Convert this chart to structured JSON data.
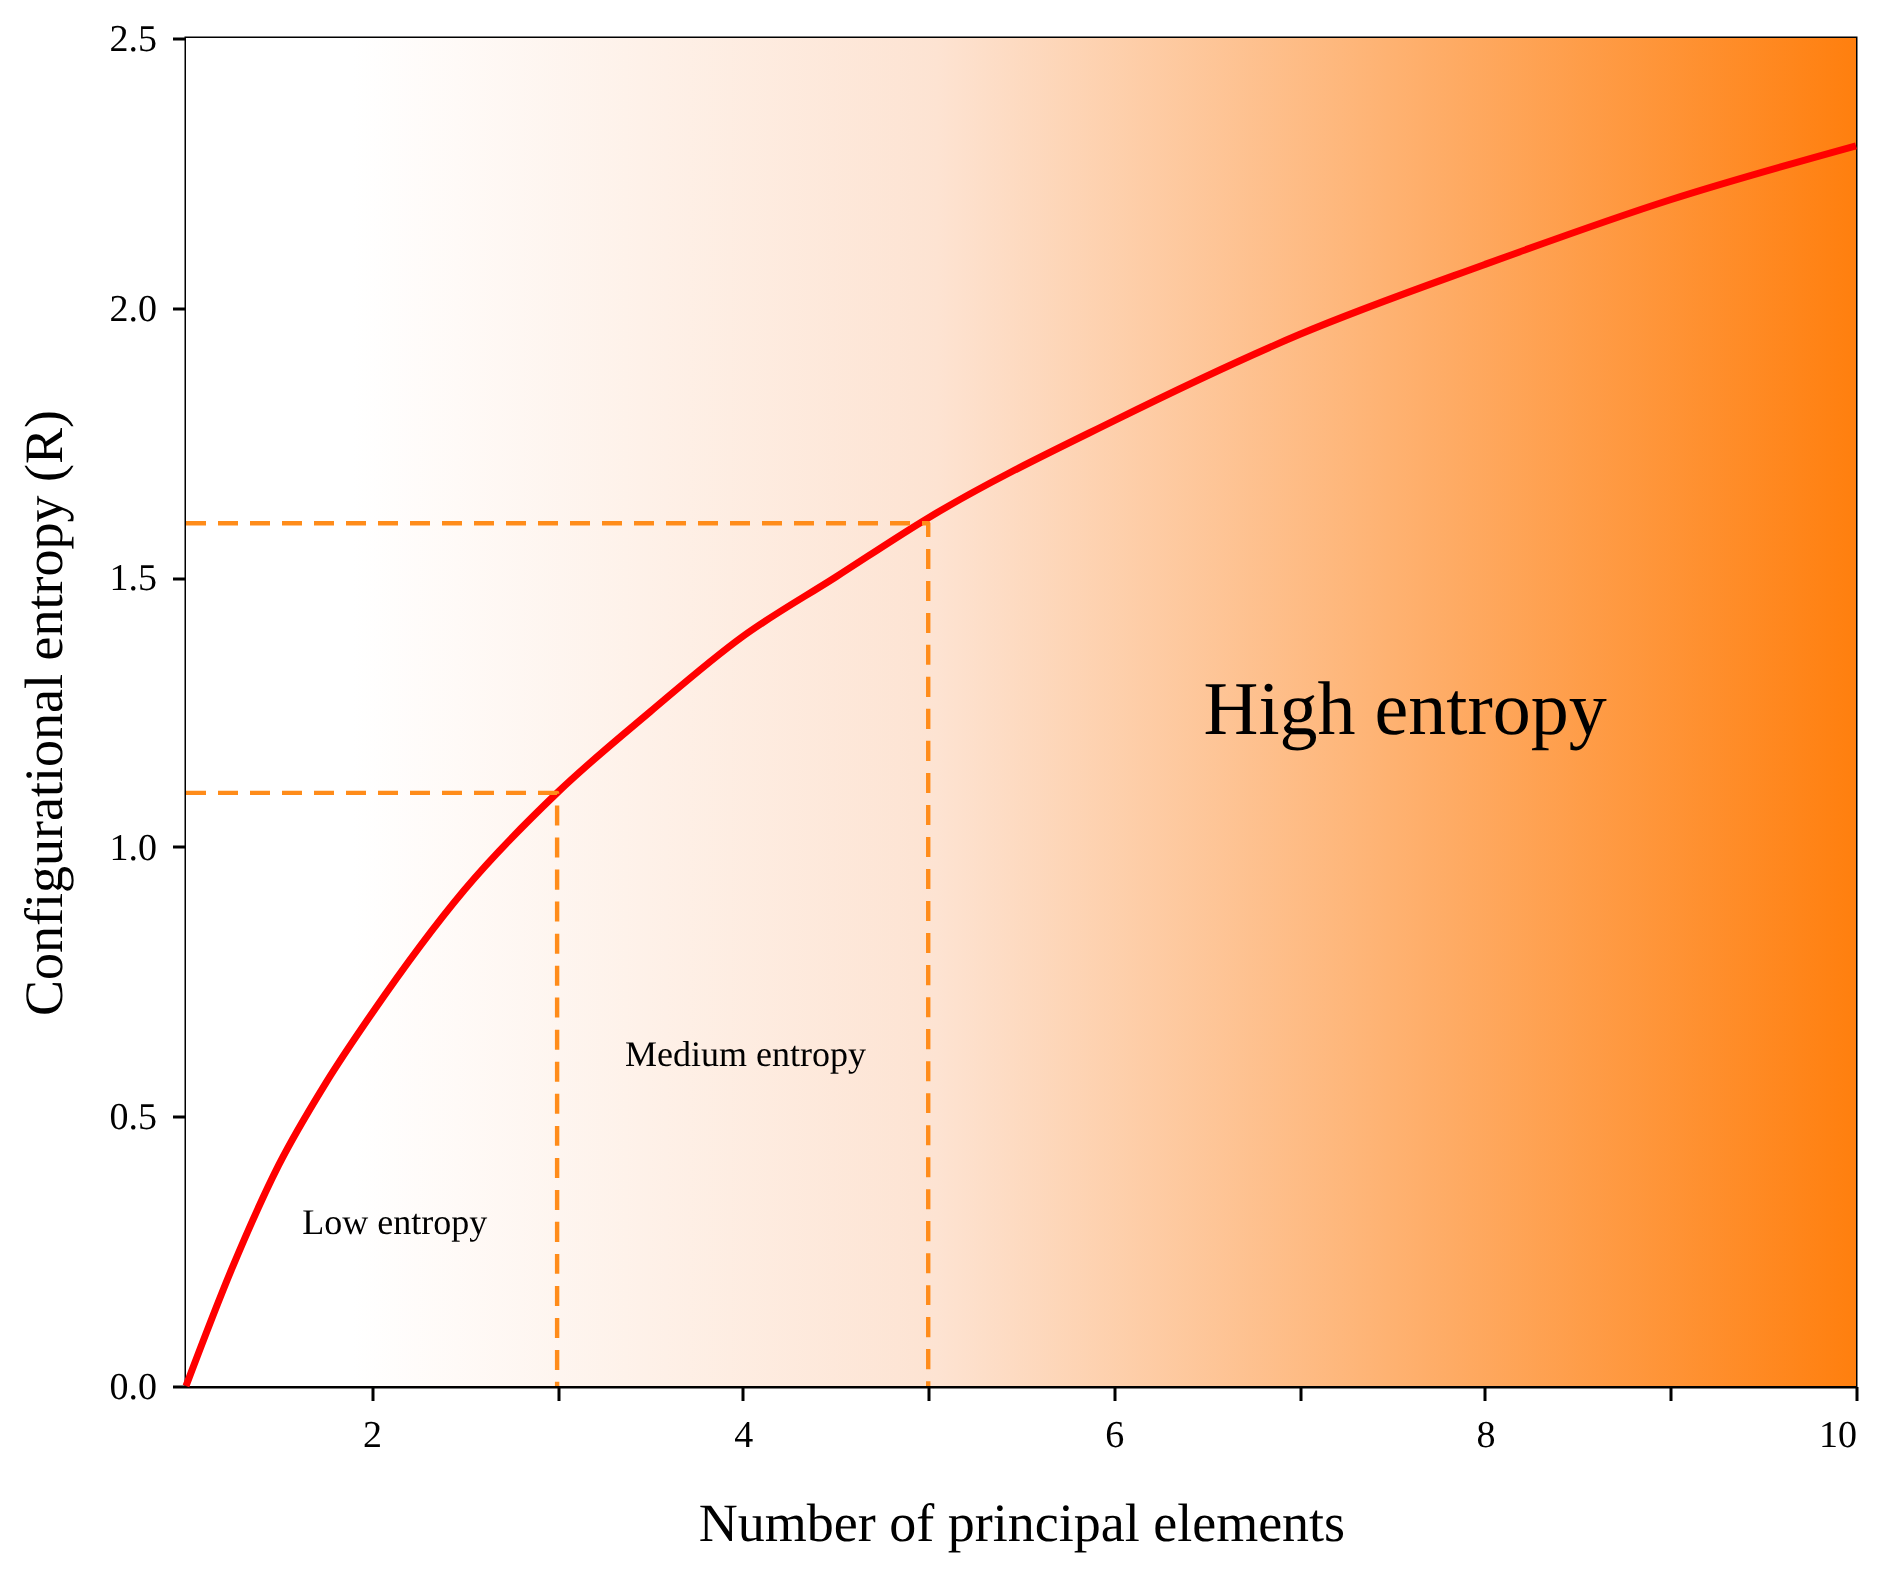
{
  "chart_data": {
    "type": "line",
    "xlabel": "Number of principal elements",
    "ylabel": "Configurational entropy (R)",
    "xlim": [
      1,
      10
    ],
    "ylim": [
      0,
      2.5
    ],
    "xticks": [
      2,
      {
        "value": 3,
        "label": null
      },
      4,
      {
        "value": 5,
        "label": null
      },
      6,
      {
        "value": 7,
        "label": null
      },
      8,
      {
        "value": 9,
        "label": null
      },
      10
    ],
    "yticks": [
      {
        "value": 0,
        "label": "0.0"
      },
      0.5,
      {
        "value": 1,
        "label": "1.0"
      },
      1.5,
      {
        "value": 2,
        "label": "2.0"
      },
      2.5
    ],
    "grid": false,
    "bands": [
      {
        "axis": "x",
        "from": 1,
        "to": 10,
        "color": "#ff7f0e"
      }
    ],
    "series": [
      {
        "x": [
          1,
          1.25,
          1.5,
          1.75,
          2,
          2.5,
          3,
          3.5,
          4,
          4.5,
          5,
          6,
          7,
          8,
          9,
          10
        ],
        "values": [
          0,
          0.22,
          0.41,
          0.56,
          0.69,
          0.92,
          1.1,
          1.25,
          1.39,
          1.5,
          1.61,
          1.79,
          1.95,
          2.08,
          2.2,
          2.3
        ],
        "color": "#ff0000",
        "line_style": "solid"
      },
      {
        "type": "line",
        "x": [
          1,
          3,
          3
        ],
        "values": [
          1.1,
          1.1,
          0
        ],
        "color": "#ff8c1a",
        "line_style": "dashed"
      },
      {
        "type": "line",
        "x": [
          1,
          5,
          5
        ],
        "values": [
          1.6,
          1.6,
          0
        ],
        "color": "#ff8c1a",
        "line_style": "dashed"
      }
    ],
    "annotations": [
      "Low entropy",
      "Medium entropy",
      "High entropy"
    ]
  }
}
